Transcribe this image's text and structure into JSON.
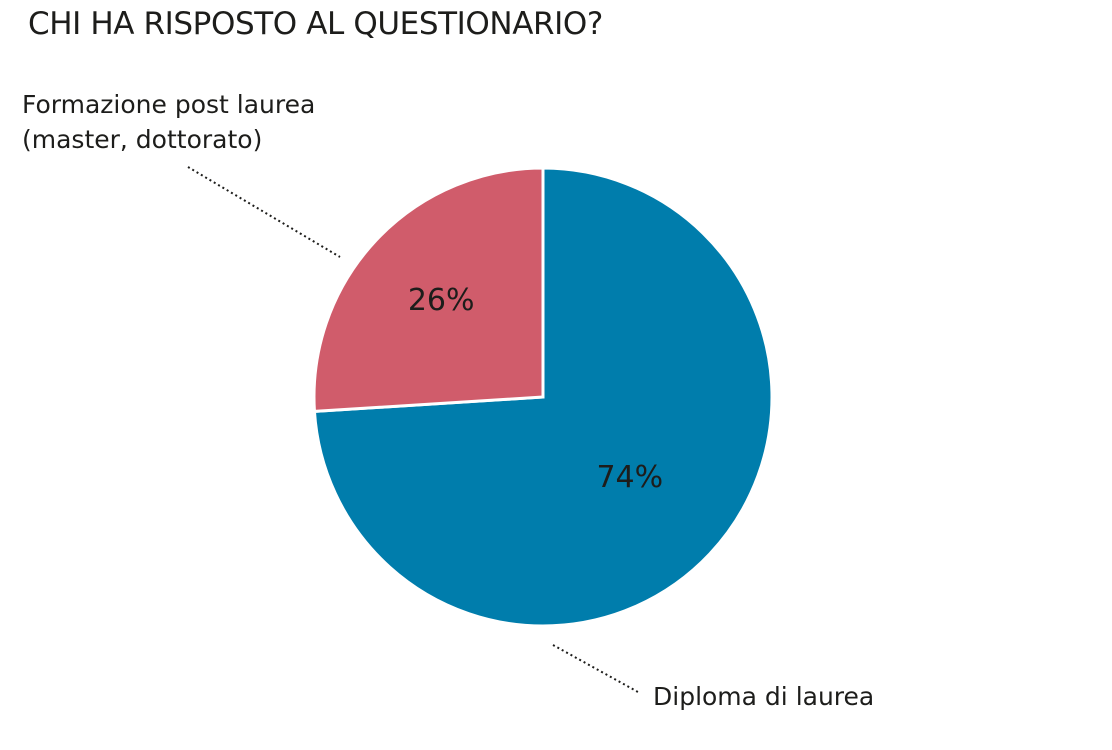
{
  "chart_data": {
    "type": "pie",
    "title": "CHI HA RISPOSTO AL QUESTIONARIO?",
    "slices": [
      {
        "label": "Diploma di laurea",
        "value": 74,
        "value_label": "74%",
        "color": "#007dac"
      },
      {
        "label_lines": [
          "Formazione post laurea",
          "(master, dottorato)"
        ],
        "value": 26,
        "value_label": "26%",
        "color": "#d05c6b"
      }
    ],
    "start_angle": "12 o'clock",
    "direction": "clockwise",
    "slice_border_color": "#ffffff",
    "leader_line_style": "dotted",
    "leader_line_color": "#1d1d1b"
  }
}
